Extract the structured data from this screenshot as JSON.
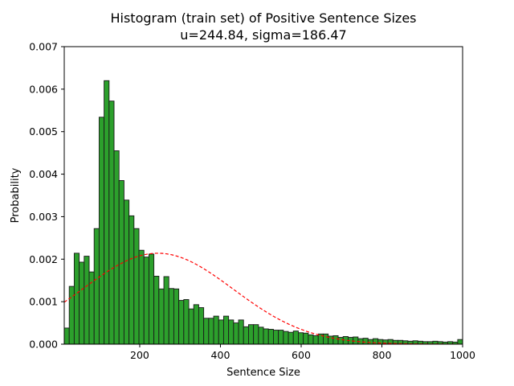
{
  "chart_data": {
    "type": "bar",
    "title": "Histogram (train set) of Positive Sentence Sizes",
    "subtitle": "u=244.84, sigma=186.47",
    "xlabel": "Sentence Size",
    "ylabel": "Probability",
    "xlim": [
      13,
      1000
    ],
    "ylim": [
      0,
      0.007
    ],
    "x_ticks": [
      200,
      400,
      600,
      800,
      1000
    ],
    "y_ticks": [
      0.0,
      0.001,
      0.002,
      0.003,
      0.004,
      0.005,
      0.006,
      0.007
    ],
    "x_tick_labels": [
      "200",
      "400",
      "600",
      "800",
      "1000"
    ],
    "y_tick_labels": [
      "0.000",
      "0.001",
      "0.002",
      "0.003",
      "0.004",
      "0.005",
      "0.006",
      "0.007"
    ],
    "bin_start": 13,
    "bin_width": 12.34,
    "bar_color": "#2ca02c",
    "bar_edge_color": "#1a1a1a",
    "fit_curve": {
      "type": "normal_pdf",
      "mu": 244.84,
      "sigma": 186.47,
      "color": "#ff0000",
      "style": "dashed"
    },
    "values": [
      0.00038,
      0.00136,
      0.00214,
      0.00193,
      0.00207,
      0.0017,
      0.00272,
      0.00534,
      0.0062,
      0.00572,
      0.00455,
      0.00385,
      0.00339,
      0.00302,
      0.00272,
      0.00221,
      0.00205,
      0.00212,
      0.0016,
      0.0013,
      0.00159,
      0.00131,
      0.0013,
      0.00103,
      0.00105,
      0.00083,
      0.00093,
      0.00086,
      0.00061,
      0.00061,
      0.00066,
      0.00057,
      0.00066,
      0.00057,
      0.0005,
      0.00057,
      0.00041,
      0.00046,
      0.00046,
      0.0004,
      0.00036,
      0.00035,
      0.00033,
      0.00033,
      0.0003,
      0.00028,
      0.00031,
      0.00027,
      0.00026,
      0.00022,
      0.0002,
      0.00024,
      0.00024,
      0.00019,
      0.0002,
      0.00016,
      0.00018,
      0.00016,
      0.00017,
      0.00013,
      0.00014,
      0.00011,
      0.00013,
      0.00011,
      0.0001,
      0.00011,
      9e-05,
      9e-05,
      8e-05,
      7e-05,
      8e-05,
      7e-05,
      6e-05,
      6e-05,
      7e-05,
      6e-05,
      5e-05,
      6e-05,
      5e-05,
      0.00011
    ]
  }
}
